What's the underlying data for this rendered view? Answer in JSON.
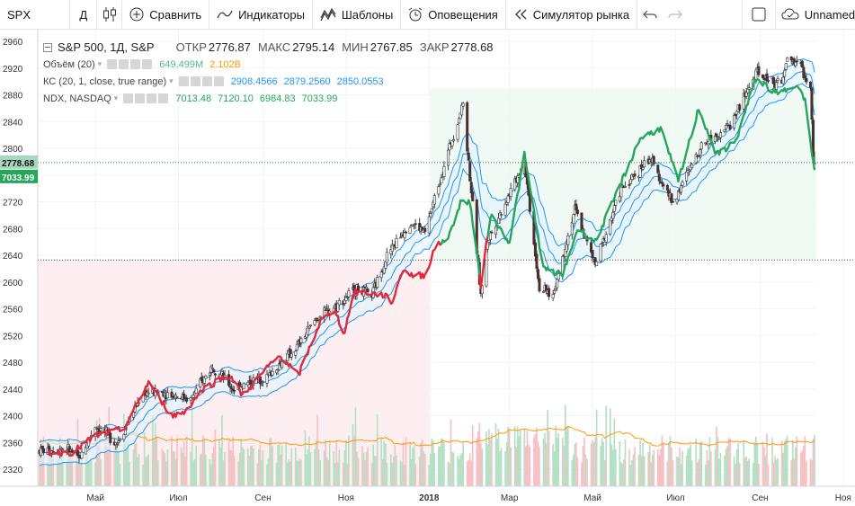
{
  "toolbar": {
    "symbol": "SPX",
    "interval": "Д",
    "compare_label": "Сравнить",
    "indicators_label": "Индикаторы",
    "templates_label": "Шаблоны",
    "alerts_label": "Оповещения",
    "replay_label": "Симулятор рынка",
    "layout_label": "Unnamed"
  },
  "legend": {
    "title": "S&P 500, 1Д, S&P",
    "open_key": "ОТКР",
    "open": "2776.87",
    "high_key": "МАКС",
    "high": "2795.14",
    "low_key": "МИН",
    "low": "2767.85",
    "close_key": "ЗАКР",
    "close": "2778.68",
    "volume_name": "Объём (20)",
    "volume_val": "649.499M",
    "volume_ma": "2.102B",
    "kc_name": "КС (20, 1, close, true range)",
    "kc_upper": "2908.4566",
    "kc_mid": "2879.2560",
    "kc_lower": "2850.0553",
    "ndx_name": "NDX, NASDAQ",
    "ndx_o": "7013.48",
    "ndx_h": "7120.10",
    "ndx_l": "6984.83",
    "ndx_c": "7033.99"
  },
  "colors": {
    "up": "#53b987",
    "down": "#eb4d5c",
    "kc": "#2196f3",
    "kc_fill": "#e3f2fd",
    "ndx_up": "#26a65b",
    "ndx_down": "#e0293c",
    "vol_up": "#b5e0c6",
    "vol_down": "#f6c1c5",
    "vol_ma": "#ff9800",
    "grid": "#f0f3fa"
  },
  "chart_data": {
    "type": "candlestick",
    "title": "S&P 500, 1Д, S&P",
    "y_axis_ticks": [
      2320,
      2360,
      2400,
      2440,
      2480,
      2520,
      2560,
      2600,
      2640,
      2680,
      2720,
      2760,
      2800,
      2840,
      2880,
      2920,
      2960
    ],
    "x_axis_labels": [
      "Май",
      "Июл",
      "Сен",
      "Ноя",
      "2018",
      "Мар",
      "Май",
      "Июл",
      "Сен",
      "Ноя"
    ],
    "last_price_label": "2778.68",
    "ndx_last_label": "7033.99",
    "price_line": 2633,
    "price_points": [
      [
        "2017-03-27",
        2348
      ],
      [
        "2017-04-10",
        2352
      ],
      [
        "2017-04-19",
        2335
      ],
      [
        "2017-05-01",
        2385
      ],
      [
        "2017-05-17",
        2360
      ],
      [
        "2017-06-05",
        2435
      ],
      [
        "2017-06-20",
        2435
      ],
      [
        "2017-07-10",
        2425
      ],
      [
        "2017-07-26",
        2475
      ],
      [
        "2017-08-10",
        2440
      ],
      [
        "2017-08-22",
        2450
      ],
      [
        "2017-09-05",
        2460
      ],
      [
        "2017-09-25",
        2500
      ],
      [
        "2017-10-10",
        2545
      ],
      [
        "2017-10-25",
        2565
      ],
      [
        "2017-11-08",
        2590
      ],
      [
        "2017-11-20",
        2580
      ],
      [
        "2017-12-01",
        2640
      ],
      [
        "2017-12-18",
        2690
      ],
      [
        "2017-12-29",
        2674
      ],
      [
        "2018-01-12",
        2775
      ],
      [
        "2018-01-26",
        2868
      ],
      [
        "2018-02-08",
        2580
      ],
      [
        "2018-02-13",
        2662
      ],
      [
        "2018-03-12",
        2780
      ],
      [
        "2018-03-23",
        2590
      ],
      [
        "2018-04-02",
        2580
      ],
      [
        "2018-04-18",
        2710
      ],
      [
        "2018-05-03",
        2625
      ],
      [
        "2018-05-21",
        2735
      ],
      [
        "2018-06-12",
        2785
      ],
      [
        "2018-06-29",
        2718
      ],
      [
        "2018-07-20",
        2805
      ],
      [
        "2018-08-10",
        2835
      ],
      [
        "2018-08-29",
        2912
      ],
      [
        "2018-09-17",
        2895
      ],
      [
        "2018-09-21",
        2935
      ],
      [
        "2018-10-01",
        2925
      ],
      [
        "2018-10-08",
        2885
      ],
      [
        "2018-10-10",
        2790
      ],
      [
        "2018-10-11",
        2778
      ]
    ],
    "ndx_points": [
      [
        "2017-03-27",
        2345
      ],
      [
        "2017-04-14",
        2345
      ],
      [
        "2017-05-01",
        2370
      ],
      [
        "2017-05-22",
        2380
      ],
      [
        "2017-06-09",
        2450
      ],
      [
        "2017-06-26",
        2400
      ],
      [
        "2017-07-05",
        2405
      ],
      [
        "2017-07-19",
        2440
      ],
      [
        "2017-08-01",
        2455
      ],
      [
        "2017-08-08",
        2460
      ],
      [
        "2017-08-17",
        2430
      ],
      [
        "2017-09-08",
        2480
      ],
      [
        "2017-09-14",
        2490
      ],
      [
        "2017-09-27",
        2460
      ],
      [
        "2017-10-13",
        2540
      ],
      [
        "2017-10-24",
        2560
      ],
      [
        "2017-10-30",
        2520
      ],
      [
        "2017-11-07",
        2585
      ],
      [
        "2017-11-13",
        2585
      ],
      [
        "2017-11-29",
        2580
      ],
      [
        "2017-12-05",
        2570
      ],
      [
        "2017-12-13",
        2620
      ],
      [
        "2017-12-19",
        2610
      ],
      [
        "2017-12-29",
        2610
      ],
      [
        "2018-01-05",
        2650
      ],
      [
        "2018-01-16",
        2670
      ],
      [
        "2018-01-24",
        2720
      ],
      [
        "2018-01-31",
        2720
      ],
      [
        "2018-02-08",
        2595
      ],
      [
        "2018-02-15",
        2700
      ],
      [
        "2018-03-01",
        2660
      ],
      [
        "2018-03-12",
        2790
      ],
      [
        "2018-03-26",
        2620
      ],
      [
        "2018-04-09",
        2610
      ],
      [
        "2018-04-20",
        2680
      ],
      [
        "2018-05-03",
        2660
      ],
      [
        "2018-05-16",
        2720
      ],
      [
        "2018-06-05",
        2815
      ],
      [
        "2018-06-20",
        2830
      ],
      [
        "2018-07-03",
        2750
      ],
      [
        "2018-07-18",
        2860
      ],
      [
        "2018-07-31",
        2790
      ],
      [
        "2018-08-14",
        2810
      ],
      [
        "2018-08-29",
        2905
      ],
      [
        "2018-09-14",
        2880
      ],
      [
        "2018-09-28",
        2898
      ],
      [
        "2018-10-04",
        2870
      ],
      [
        "2018-10-11",
        2765
      ]
    ]
  }
}
